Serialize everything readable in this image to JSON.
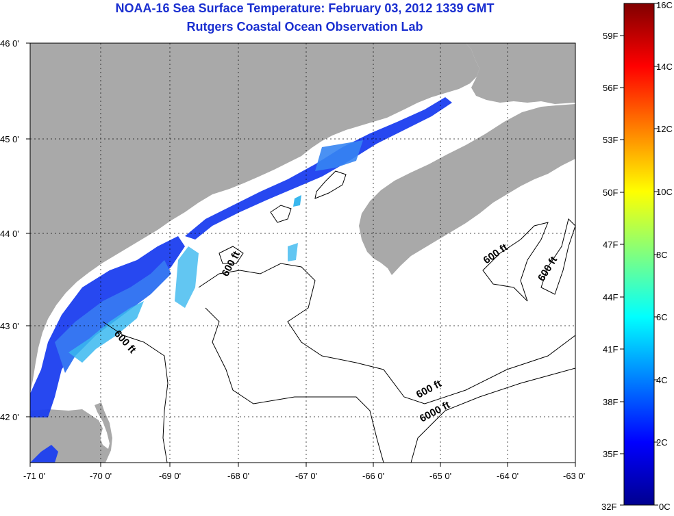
{
  "header": {
    "title": "NOAA-16 Sea Surface Temperature:  February 03, 2012 1339 GMT",
    "subtitle": "Rutgers Coastal Ocean Observation Lab"
  },
  "map": {
    "lon_labels": [
      "-71 0'",
      "-70 0'",
      "-69 0'",
      "-68 0'",
      "-67 0'",
      "-66 0'",
      "-65 0'",
      "-64 0'",
      "-63 0'"
    ],
    "lat_labels": [
      "46 0'",
      "45 0'",
      "44 0'",
      "43 0'",
      "42 0'"
    ],
    "contour_labels": [
      "600 ft",
      "600 ft",
      "600 ft",
      "600 ft",
      "600 ft",
      "6000 ft"
    ],
    "colors": {
      "land": "#a9a9a9",
      "ocean": "#ffffff",
      "sst_cold": "#1c3ff0",
      "sst_mid": "#2fb4ee"
    }
  },
  "colorbar": {
    "fahrenheit_labels": [
      "59F",
      "56F",
      "53F",
      "50F",
      "47F",
      "44F",
      "41F",
      "38F",
      "35F",
      "32F"
    ],
    "celsius_labels": [
      "16C",
      "14C",
      "12C",
      "10C",
      "8C",
      "6C",
      "4C",
      "2C",
      "0C"
    ]
  }
}
